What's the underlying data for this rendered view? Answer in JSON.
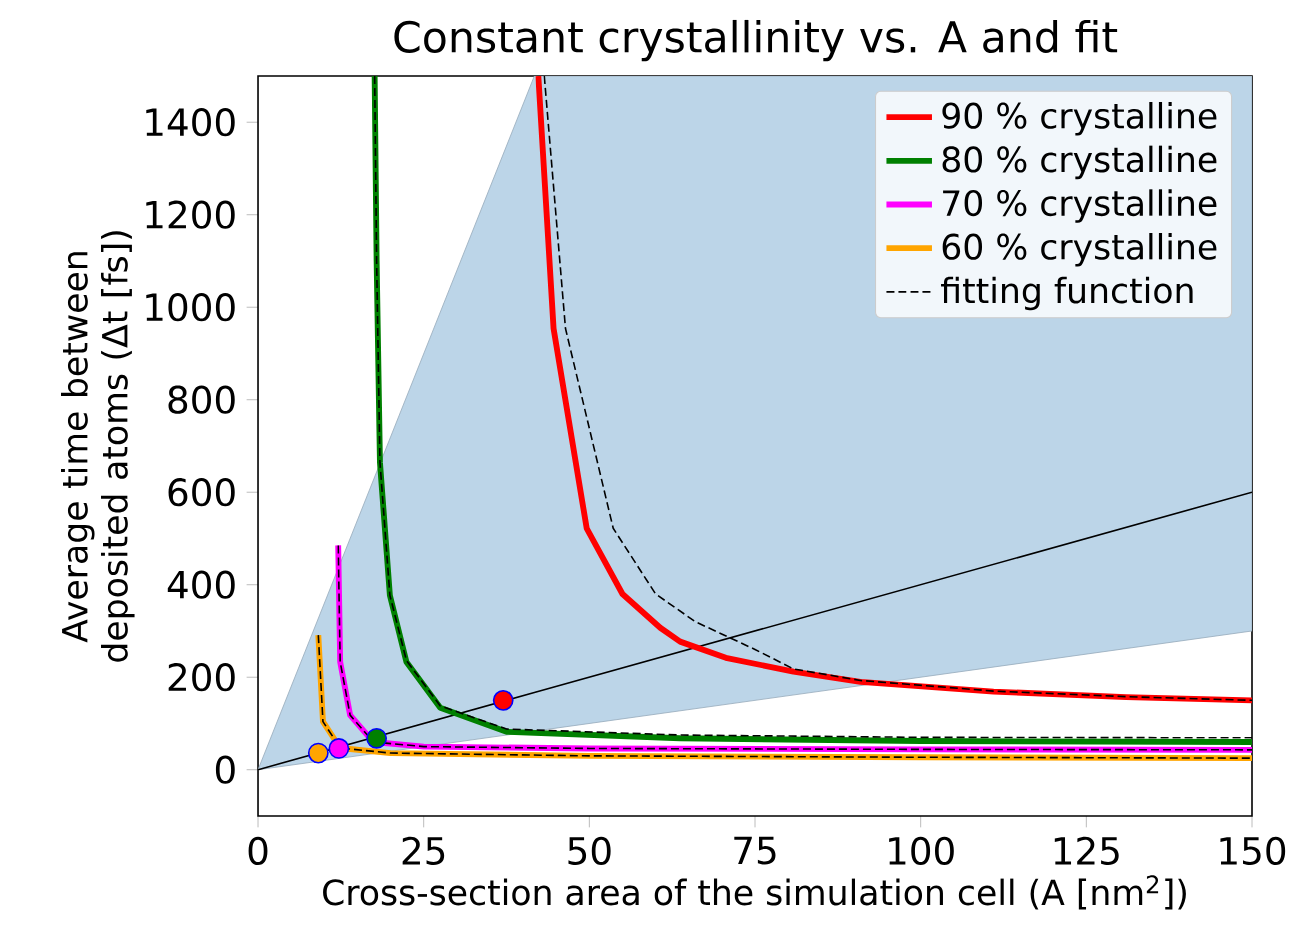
{
  "chart_data": {
    "type": "line",
    "title": "Constant crystallinity vs. A and fit",
    "xlabel": "Cross-section area of the simulation cell (A [nm$^{2}$])",
    "ylabel": "Average time between deposited atoms (Δt [fs])",
    "xlim": [
      0,
      150
    ],
    "ylim": [
      -100,
      1500
    ],
    "xticks": [
      0,
      25,
      50,
      75,
      100,
      125,
      150
    ],
    "yticks": [
      0,
      200,
      400,
      600,
      800,
      1000,
      1200,
      1400
    ],
    "grid": false,
    "legend": "top right",
    "series": [
      {
        "type": "line",
        "color": "#000000",
        "x": [
          0,
          41.7,
          150
        ],
        "values": [
          0,
          167,
          600
        ],
        "lower": [
          0,
          83.4,
          300
        ],
        "upper": [
          0,
          1500,
          1500
        ]
      },
      {
        "name": "90 % crystalline",
        "color": "#ff0000",
        "x": [
          42.3,
          44.6,
          49.6,
          55,
          60.7,
          63.7,
          70.6,
          80.8,
          90.9,
          111,
          131,
          150
        ],
        "values": [
          1500,
          954,
          522,
          380,
          307,
          277,
          242,
          212,
          190,
          169,
          157,
          150
        ]
      },
      {
        "name": "80 % crystalline",
        "color": "#008000",
        "x": [
          17.6,
          17.9,
          18.4,
          19.9,
          22.4,
          27.5,
          37.5,
          63.7,
          100,
          150
        ],
        "values": [
          1500,
          1100,
          665,
          377,
          233,
          134,
          82,
          68,
          62,
          60
        ]
      },
      {
        "name": "70 % crystalline",
        "color": "#ff00ff",
        "x": [
          12.1,
          12.4,
          13.9,
          17.4,
          25,
          50,
          100,
          150
        ],
        "values": [
          485,
          233,
          118,
          60,
          50,
          46,
          44,
          43
        ]
      },
      {
        "name": "60 % crystalline",
        "color": "#ffa500",
        "x": [
          9.1,
          9.8,
          12.4,
          20,
          50,
          100,
          150
        ],
        "values": [
          291,
          104,
          47,
          36,
          30,
          27,
          25
        ]
      },
      {
        "name": "fitting function",
        "color": "#000000",
        "line_style": "dashed",
        "x": [
          43.2,
          46.4,
          53.6,
          60,
          66,
          75,
          80.8,
          90.9,
          111,
          131,
          150
        ],
        "values": [
          1500,
          954,
          522,
          380,
          320,
          260,
          218,
          193,
          170,
          158,
          150
        ]
      },
      {
        "color": "#000000",
        "line_style": "dashed",
        "x": [
          17.6,
          17.9,
          18.4,
          19.9,
          22.4,
          27.5,
          37.5,
          63.7,
          100,
          150
        ],
        "values": [
          1500,
          1100,
          665,
          377,
          236,
          138,
          88,
          75,
          70,
          69
        ]
      },
      {
        "color": "#000000",
        "line_style": "dashed",
        "x": [
          12.1,
          12.4,
          13.9,
          17.4,
          25,
          50,
          100,
          150
        ],
        "values": [
          485,
          233,
          118,
          60,
          50,
          46,
          44,
          43
        ]
      },
      {
        "color": "#000000",
        "line_style": "dashed",
        "x": [
          9.1,
          9.8,
          12.4,
          20,
          50,
          100,
          150
        ],
        "values": [
          291,
          104,
          47,
          36,
          30,
          27,
          25
        ]
      },
      {
        "type": "scatter",
        "marker": "circle",
        "x": [
          9.1,
          12.2,
          17.9,
          37.0
        ],
        "values": [
          36,
          46,
          68,
          150
        ],
        "colors": [
          "#ffa500",
          "#ff00ff",
          "#008000",
          "#ff0000"
        ]
      }
    ]
  }
}
